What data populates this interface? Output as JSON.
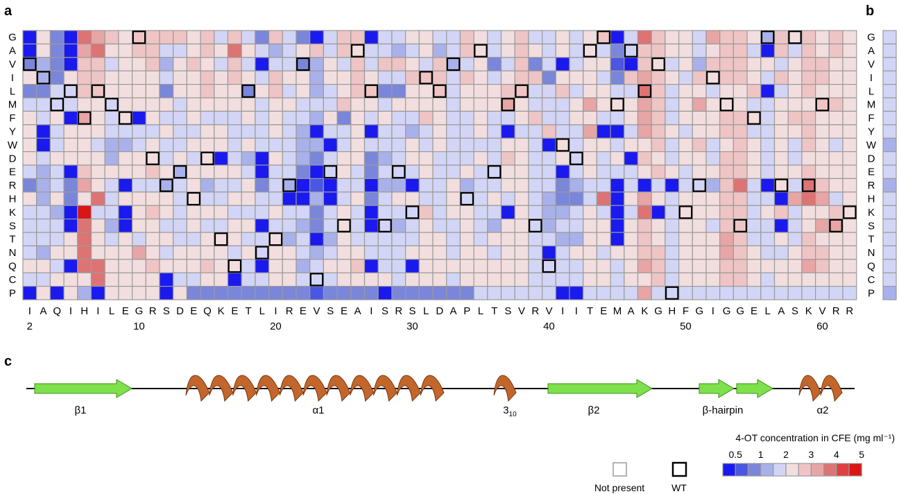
{
  "panel_labels": {
    "a": "a",
    "b": "b",
    "c": "c"
  },
  "chart_data": {
    "type": "heatmap",
    "y_categories": [
      "G",
      "A",
      "V",
      "I",
      "L",
      "M",
      "F",
      "Y",
      "W",
      "D",
      "E",
      "R",
      "H",
      "K",
      "S",
      "T",
      "N",
      "Q",
      "C",
      "P"
    ],
    "x_categories": [
      "I",
      "A",
      "Q",
      "I",
      "H",
      "I",
      "L",
      "E",
      "G",
      "R",
      "S",
      "D",
      "E",
      "Q",
      "K",
      "E",
      "T",
      "L",
      "I",
      "R",
      "E",
      "V",
      "S",
      "E",
      "A",
      "I",
      "S",
      "R",
      "S",
      "L",
      "D",
      "A",
      "P",
      "L",
      "T",
      "S",
      "V",
      "R",
      "V",
      "I",
      "I",
      "T",
      "E",
      "M",
      "A",
      "K",
      "G",
      "H",
      "F",
      "G",
      "I",
      "G",
      "G",
      "E",
      "L",
      "A",
      "S",
      "K",
      "V",
      "R",
      "R"
    ],
    "x_tick_labels": [
      {
        "pos": 2,
        "label": "2"
      },
      {
        "pos": 10,
        "label": "10"
      },
      {
        "pos": 20,
        "label": "20"
      },
      {
        "pos": 30,
        "label": "30"
      },
      {
        "pos": 40,
        "label": "40"
      },
      {
        "pos": 50,
        "label": "50"
      },
      {
        "pos": 60,
        "label": "60"
      }
    ],
    "position_start": 2,
    "color_scale": {
      "title": "4-OT concentration in CFE (mg ml⁻¹)",
      "tick_labels": [
        "0.5",
        "1",
        "2",
        "3",
        "4",
        "5"
      ],
      "colors": [
        "#1a1aee",
        "#4b56e2",
        "#7a86da",
        "#a9b1ea",
        "#d2d5f5",
        "#f2dede",
        "#eec4c4",
        "#e7a5a5",
        "#de7373",
        "#e03f3f",
        "#d81616"
      ]
    },
    "levels_note": "cell values are color-bin indices 0-10 (0 = lowest concentration, 10 = highest); -1 = not present",
    "matrix": [
      [
        0,
        5,
        2,
        0,
        8,
        7,
        6,
        5,
        6,
        6,
        6,
        6,
        5,
        6,
        4,
        6,
        4,
        2,
        6,
        4,
        2,
        0,
        4,
        6,
        6,
        0,
        4,
        4,
        5,
        5,
        4,
        4,
        6,
        5,
        4,
        5,
        6,
        4,
        4,
        5,
        4,
        5,
        6,
        0,
        4,
        8,
        6,
        5,
        5,
        4,
        7,
        6,
        6,
        5,
        3,
        6,
        5,
        6,
        5,
        6,
        5
      ],
      [
        0,
        5,
        2,
        0,
        7,
        8,
        5,
        5,
        6,
        6,
        4,
        4,
        5,
        6,
        5,
        8,
        5,
        4,
        3,
        4,
        5,
        6,
        4,
        6,
        5,
        4,
        4,
        3,
        4,
        5,
        3,
        4,
        6,
        5,
        4,
        5,
        6,
        5,
        4,
        5,
        4,
        5,
        4,
        2,
        4,
        6,
        6,
        5,
        5,
        4,
        5,
        6,
        6,
        4,
        0,
        6,
        4,
        6,
        5,
        6,
        5
      ],
      [
        2,
        3,
        2,
        0,
        6,
        6,
        4,
        5,
        5,
        6,
        3,
        5,
        6,
        5,
        4,
        6,
        4,
        0,
        4,
        4,
        2,
        3,
        5,
        4,
        6,
        4,
        6,
        6,
        5,
        4,
        6,
        3,
        4,
        5,
        2,
        4,
        6,
        2,
        4,
        0,
        4,
        5,
        5,
        1,
        0,
        6,
        5,
        4,
        5,
        3,
        6,
        6,
        6,
        5,
        5,
        4,
        5,
        6,
        6,
        5,
        5
      ],
      [
        5,
        3,
        2,
        5,
        6,
        6,
        5,
        5,
        5,
        5,
        4,
        5,
        5,
        6,
        5,
        6,
        5,
        4,
        6,
        5,
        5,
        3,
        5,
        5,
        6,
        5,
        4,
        4,
        6,
        6,
        6,
        4,
        6,
        5,
        4,
        5,
        6,
        6,
        2,
        5,
        5,
        5,
        4,
        2,
        6,
        7,
        6,
        5,
        4,
        6,
        5,
        6,
        6,
        5,
        4,
        6,
        5,
        6,
        6,
        5,
        5
      ],
      [
        2,
        2,
        4,
        4,
        6,
        6,
        5,
        5,
        5,
        5,
        2,
        5,
        5,
        6,
        5,
        5,
        2,
        5,
        6,
        4,
        5,
        3,
        4,
        5,
        6,
        6,
        2,
        2,
        5,
        5,
        6,
        4,
        5,
        5,
        5,
        6,
        6,
        4,
        4,
        6,
        4,
        5,
        5,
        4,
        4,
        8,
        6,
        4,
        5,
        5,
        4,
        5,
        5,
        6,
        0,
        4,
        5,
        6,
        5,
        5,
        5
      ],
      [
        4,
        4,
        4,
        4,
        5,
        5,
        4,
        5,
        5,
        5,
        5,
        4,
        5,
        5,
        5,
        5,
        5,
        4,
        5,
        5,
        4,
        4,
        4,
        6,
        5,
        5,
        4,
        5,
        5,
        5,
        5,
        4,
        5,
        5,
        5,
        7,
        5,
        4,
        4,
        4,
        5,
        7,
        5,
        5,
        5,
        7,
        6,
        4,
        5,
        7,
        5,
        5,
        5,
        4,
        4,
        5,
        5,
        5,
        6,
        6,
        5
      ],
      [
        5,
        4,
        5,
        0,
        7,
        5,
        4,
        5,
        0,
        5,
        4,
        4,
        5,
        4,
        4,
        4,
        5,
        4,
        5,
        4,
        4,
        3,
        5,
        2,
        5,
        4,
        5,
        4,
        4,
        6,
        5,
        4,
        4,
        5,
        4,
        4,
        5,
        6,
        4,
        4,
        5,
        5,
        4,
        4,
        5,
        7,
        6,
        4,
        5,
        5,
        5,
        6,
        6,
        5,
        4,
        5,
        6,
        6,
        5,
        5,
        5
      ],
      [
        5,
        0,
        4,
        5,
        5,
        5,
        4,
        4,
        4,
        4,
        5,
        4,
        4,
        5,
        5,
        4,
        4,
        4,
        5,
        4,
        3,
        0,
        4,
        4,
        5,
        0,
        4,
        4,
        3,
        4,
        5,
        4,
        4,
        5,
        4,
        0,
        4,
        4,
        6,
        4,
        4,
        7,
        0,
        0,
        4,
        7,
        6,
        5,
        4,
        5,
        5,
        6,
        6,
        4,
        4,
        5,
        5,
        6,
        5,
        5,
        5
      ],
      [
        5,
        0,
        4,
        5,
        5,
        4,
        3,
        3,
        4,
        5,
        4,
        4,
        5,
        5,
        5,
        4,
        5,
        4,
        4,
        4,
        3,
        3,
        0,
        4,
        5,
        4,
        4,
        4,
        5,
        4,
        5,
        4,
        4,
        4,
        4,
        5,
        5,
        4,
        0,
        5,
        4,
        5,
        5,
        4,
        5,
        5,
        6,
        4,
        5,
        6,
        4,
        5,
        6,
        5,
        4,
        5,
        4,
        6,
        5,
        4,
        5
      ],
      [
        5,
        4,
        5,
        5,
        5,
        5,
        3,
        5,
        5,
        5,
        4,
        5,
        4,
        5,
        0,
        4,
        3,
        0,
        5,
        4,
        3,
        2,
        4,
        5,
        5,
        2,
        3,
        4,
        5,
        5,
        4,
        4,
        4,
        5,
        4,
        6,
        5,
        4,
        4,
        5,
        4,
        5,
        4,
        5,
        0,
        6,
        5,
        4,
        5,
        5,
        4,
        6,
        6,
        5,
        4,
        5,
        4,
        5,
        5,
        5,
        5
      ],
      [
        4,
        3,
        4,
        0,
        6,
        5,
        5,
        5,
        5,
        6,
        5,
        3,
        5,
        5,
        5,
        5,
        4,
        0,
        4,
        4,
        2,
        0,
        4,
        5,
        4,
        2,
        4,
        4,
        4,
        5,
        4,
        4,
        5,
        4,
        4,
        5,
        5,
        4,
        4,
        0,
        4,
        5,
        4,
        4,
        4,
        5,
        6,
        5,
        4,
        5,
        5,
        6,
        6,
        5,
        4,
        5,
        5,
        6,
        5,
        5,
        5
      ],
      [
        2,
        3,
        4,
        2,
        7,
        5,
        4,
        0,
        4,
        4,
        3,
        4,
        5,
        3,
        4,
        4,
        5,
        2,
        4,
        3,
        0,
        1,
        0,
        4,
        4,
        0,
        3,
        3,
        0,
        4,
        4,
        5,
        3,
        4,
        4,
        5,
        5,
        4,
        4,
        2,
        3,
        4,
        4,
        0,
        4,
        0,
        4,
        0,
        4,
        4,
        3,
        6,
        8,
        4,
        0,
        5,
        4,
        8,
        6,
        5,
        5
      ],
      [
        5,
        3,
        5,
        2,
        5,
        8,
        4,
        5,
        5,
        5,
        5,
        4,
        5,
        4,
        4,
        5,
        5,
        4,
        4,
        0,
        0,
        3,
        0,
        4,
        5,
        2,
        4,
        5,
        5,
        4,
        4,
        5,
        4,
        4,
        5,
        4,
        5,
        4,
        3,
        2,
        2,
        4,
        8,
        0,
        5,
        7,
        5,
        4,
        5,
        5,
        5,
        6,
        6,
        4,
        4,
        0,
        7,
        8,
        7,
        4,
        5
      ],
      [
        4,
        4,
        3,
        0,
        10,
        4,
        4,
        0,
        5,
        6,
        5,
        4,
        5,
        5,
        5,
        4,
        4,
        4,
        5,
        4,
        4,
        2,
        4,
        5,
        4,
        0,
        4,
        4,
        4,
        6,
        4,
        5,
        5,
        4,
        4,
        0,
        5,
        4,
        3,
        3,
        4,
        5,
        4,
        0,
        4,
        8,
        0,
        4,
        5,
        5,
        5,
        6,
        6,
        4,
        5,
        6,
        4,
        5,
        5,
        6,
        5
      ],
      [
        4,
        4,
        4,
        0,
        8,
        5,
        3,
        0,
        5,
        5,
        4,
        4,
        5,
        4,
        4,
        5,
        5,
        0,
        4,
        4,
        3,
        2,
        4,
        5,
        4,
        0,
        4,
        3,
        4,
        5,
        4,
        4,
        5,
        4,
        3,
        5,
        5,
        4,
        3,
        4,
        4,
        5,
        5,
        0,
        5,
        6,
        5,
        4,
        5,
        5,
        4,
        6,
        6,
        4,
        4,
        0,
        4,
        5,
        7,
        7,
        5
      ],
      [
        4,
        4,
        4,
        5,
        8,
        5,
        4,
        5,
        4,
        5,
        5,
        4,
        4,
        5,
        5,
        5,
        4,
        4,
        5,
        3,
        4,
        0,
        3,
        5,
        4,
        4,
        4,
        4,
        4,
        5,
        5,
        4,
        5,
        4,
        5,
        5,
        5,
        4,
        4,
        3,
        3,
        5,
        5,
        0,
        5,
        6,
        5,
        4,
        5,
        5,
        5,
        7,
        6,
        4,
        4,
        5,
        4,
        6,
        5,
        5,
        5
      ],
      [
        4,
        3,
        5,
        5,
        8,
        5,
        5,
        5,
        7,
        5,
        4,
        5,
        5,
        5,
        5,
        4,
        5,
        4,
        5,
        5,
        4,
        3,
        4,
        5,
        5,
        4,
        4,
        4,
        5,
        5,
        5,
        4,
        5,
        5,
        4,
        5,
        5,
        4,
        0,
        4,
        5,
        5,
        4,
        5,
        5,
        6,
        6,
        4,
        5,
        5,
        5,
        7,
        6,
        5,
        4,
        4,
        5,
        6,
        6,
        5,
        5
      ],
      [
        5,
        5,
        4,
        0,
        8,
        8,
        5,
        5,
        5,
        6,
        5,
        5,
        5,
        6,
        5,
        5,
        4,
        0,
        5,
        5,
        3,
        4,
        5,
        5,
        6,
        0,
        4,
        4,
        0,
        5,
        5,
        5,
        5,
        5,
        5,
        5,
        5,
        4,
        4,
        4,
        4,
        5,
        5,
        4,
        5,
        7,
        6,
        4,
        5,
        5,
        5,
        6,
        6,
        5,
        5,
        5,
        5,
        7,
        6,
        5,
        5
      ],
      [
        4,
        4,
        5,
        5,
        5,
        8,
        5,
        5,
        5,
        5,
        0,
        4,
        4,
        5,
        5,
        0,
        4,
        4,
        5,
        5,
        4,
        4,
        4,
        5,
        5,
        5,
        5,
        4,
        5,
        5,
        5,
        4,
        5,
        5,
        5,
        5,
        5,
        4,
        4,
        4,
        4,
        5,
        5,
        4,
        5,
        5,
        6,
        4,
        5,
        5,
        5,
        6,
        6,
        5,
        4,
        5,
        5,
        5,
        5,
        5,
        5
      ],
      [
        0,
        5,
        0,
        5,
        3,
        0,
        5,
        5,
        5,
        5,
        0,
        5,
        2,
        2,
        2,
        2,
        2,
        2,
        2,
        2,
        2,
        1,
        2,
        2,
        2,
        2,
        0,
        2,
        2,
        2,
        2,
        2,
        2,
        4,
        4,
        4,
        4,
        4,
        4,
        0,
        0,
        4,
        4,
        4,
        4,
        7,
        4,
        4,
        4,
        4,
        4,
        4,
        4,
        4,
        4,
        4,
        4,
        4,
        4,
        4,
        4
      ]
    ],
    "wild_type_positions": [
      2,
      3,
      5,
      4,
      6,
      4,
      5,
      6,
      0,
      9,
      11,
      10,
      12,
      9,
      15,
      17,
      4,
      16,
      15,
      11,
      2,
      18,
      10,
      14,
      1,
      4,
      14,
      10,
      13,
      3,
      4,
      2,
      12,
      1,
      10,
      5,
      4,
      14,
      17,
      8,
      9,
      1,
      0,
      5,
      1,
      4,
      2,
      19,
      13,
      11,
      3,
      5,
      14,
      6,
      0,
      11,
      0,
      11,
      5,
      14,
      13
    ],
    "wild_type_missing": [],
    "column_b_values": [
      4,
      4,
      4,
      4,
      4,
      4,
      4,
      4,
      3,
      4,
      4,
      3,
      4,
      4,
      4,
      4,
      4,
      4,
      4,
      3
    ],
    "legend": {
      "not_present": "Not present",
      "wt": "WT"
    }
  },
  "secondary_structure": {
    "elements": [
      {
        "type": "strand",
        "label": "β1"
      },
      {
        "type": "helix",
        "label": "α1"
      },
      {
        "type": "helix",
        "label": "3",
        "sub": "10"
      },
      {
        "type": "strand",
        "label": "β2"
      },
      {
        "type": "strand",
        "label": "β-hairpin"
      },
      {
        "type": "helix",
        "label": "α2"
      }
    ]
  },
  "colors": {
    "grid_stroke": "#9a9a9a",
    "helix": "#c2662c",
    "helix_dark": "#7a3a12",
    "strand": "#7ee04a",
    "strand_dark": "#3f8f1e"
  }
}
